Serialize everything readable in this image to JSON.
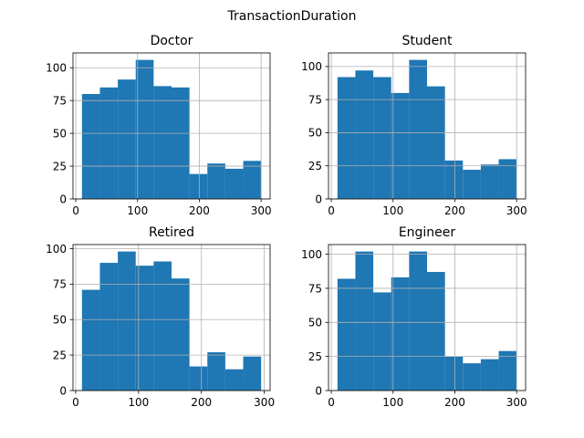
{
  "figure_title": "TransactionDuration",
  "chart_data": [
    {
      "type": "bar",
      "title": "Doctor",
      "bin_edges": [
        10,
        39,
        68,
        97,
        126,
        155,
        184,
        213,
        242,
        271,
        300
      ],
      "values": [
        80,
        85,
        91,
        106,
        86,
        85,
        19,
        27,
        23,
        29
      ],
      "xticks": [
        0,
        100,
        200,
        300
      ],
      "yticks": [
        0,
        25,
        50,
        75,
        100
      ],
      "xlim": [
        -4.5,
        314.5
      ],
      "ylim": [
        0,
        111.3
      ],
      "grid": true,
      "xlabel": "",
      "ylabel": ""
    },
    {
      "type": "bar",
      "title": "Student",
      "bin_edges": [
        10,
        39,
        68,
        97,
        126,
        155,
        184,
        213,
        242,
        271,
        300
      ],
      "values": [
        92,
        97,
        92,
        80,
        105,
        85,
        29,
        22,
        26,
        30
      ],
      "xticks": [
        0,
        100,
        200,
        300
      ],
      "yticks": [
        0,
        25,
        50,
        75,
        100
      ],
      "xlim": [
        -4.5,
        314.5
      ],
      "ylim": [
        0,
        110.25
      ],
      "grid": true,
      "xlabel": "",
      "ylabel": ""
    },
    {
      "type": "bar",
      "title": "Retired",
      "bin_edges": [
        10,
        38.5,
        67,
        95.5,
        124,
        152.5,
        181,
        209.5,
        238,
        266.5,
        295
      ],
      "values": [
        71,
        90,
        98,
        88,
        91,
        79,
        17,
        27,
        15,
        24
      ],
      "xticks": [
        0,
        100,
        200,
        300
      ],
      "yticks": [
        0,
        25,
        50,
        75,
        100
      ],
      "xlim": [
        -4.25,
        309.25
      ],
      "ylim": [
        0,
        102.9
      ],
      "grid": true,
      "xlabel": "",
      "ylabel": ""
    },
    {
      "type": "bar",
      "title": "Engineer",
      "bin_edges": [
        10,
        39,
        68,
        97,
        126,
        155,
        184,
        213,
        242,
        271,
        300
      ],
      "values": [
        82,
        102,
        72,
        83,
        102,
        87,
        25,
        20,
        23,
        29
      ],
      "xticks": [
        0,
        100,
        200,
        300
      ],
      "yticks": [
        0,
        25,
        50,
        75,
        100
      ],
      "xlim": [
        -4.5,
        314.5
      ],
      "ylim": [
        0,
        107.1
      ],
      "grid": true,
      "xlabel": "",
      "ylabel": ""
    }
  ],
  "colors": {
    "bar": "#1f77b4",
    "grid": "#b0b0b0",
    "axis": "#000000"
  }
}
